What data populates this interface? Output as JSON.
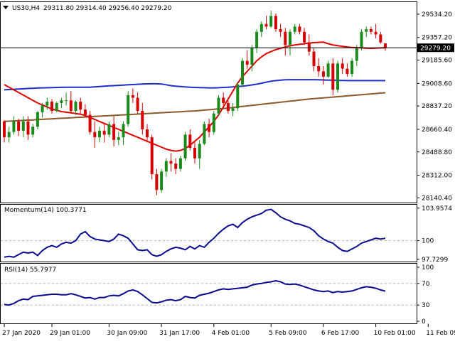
{
  "header": {
    "symbol": "US30,H4",
    "ohlc": "29311.80 29314.40 29256.40 29279.20"
  },
  "colors": {
    "bull": "#1a8a1a",
    "bear": "#d40000",
    "ma_fast": "#e00000",
    "ma_mid": "#1f2ec8",
    "ma_slow": "#8b5a2b",
    "indicator": "#0a0a90",
    "price_marker_bg": "#000000",
    "grid": "#b4b4b4"
  },
  "chart_data": [
    {
      "type": "candlestick",
      "title": "US30,H4",
      "ohlc_text": "29311.80 29314.40 29256.40 29279.20",
      "ylim": [
        28110,
        29620
      ],
      "y_ticks": [
        "29534.20",
        "29357.20",
        "29185.60",
        "29008.60",
        "28837.20",
        "28660.40",
        "28488.80",
        "28312.00",
        "28140.40"
      ],
      "current_price_label": "29279.20",
      "current_price": 29279.2,
      "x_tick_labels": [
        {
          "index": 0,
          "label": "27 Jan 2020"
        },
        {
          "index": 10,
          "label": "29 Jan 01:00"
        },
        {
          "index": 22,
          "label": "30 Jan 09:00"
        },
        {
          "index": 33,
          "label": "31 Jan 17:00"
        },
        {
          "index": 44,
          "label": "4 Feb 01:00"
        },
        {
          "index": 56,
          "label": "5 Feb 09:00"
        },
        {
          "index": 67,
          "label": "6 Feb 17:00"
        },
        {
          "index": 78,
          "label": "10 Feb 01:00"
        },
        {
          "index": 89,
          "label": "11 Feb 09:00"
        }
      ],
      "candles": [
        [
          28720,
          28730,
          28560,
          28600
        ],
        [
          28600,
          28680,
          28560,
          28640
        ],
        [
          28640,
          28760,
          28620,
          28720
        ],
        [
          28720,
          28740,
          28610,
          28650
        ],
        [
          28650,
          28760,
          28600,
          28720
        ],
        [
          28720,
          28760,
          28580,
          28620
        ],
        [
          28620,
          28700,
          28600,
          28680
        ],
        [
          28680,
          28800,
          28660,
          28790
        ],
        [
          28790,
          28860,
          28750,
          28840
        ],
        [
          28840,
          28900,
          28810,
          28870
        ],
        [
          28870,
          28890,
          28780,
          28800
        ],
        [
          28800,
          28870,
          28790,
          28860
        ],
        [
          28860,
          28900,
          28820,
          28880
        ],
        [
          28880,
          28940,
          28840,
          28880
        ],
        [
          28880,
          28950,
          28780,
          28800
        ],
        [
          28800,
          28880,
          28770,
          28870
        ],
        [
          28870,
          28900,
          28780,
          28810
        ],
        [
          28810,
          28850,
          28750,
          28770
        ],
        [
          28770,
          28800,
          28620,
          28640
        ],
        [
          28640,
          28720,
          28520,
          28600
        ],
        [
          28600,
          28680,
          28560,
          28650
        ],
        [
          28650,
          28700,
          28560,
          28620
        ],
        [
          28620,
          28720,
          28600,
          28700
        ],
        [
          28700,
          28760,
          28530,
          28580
        ],
        [
          28580,
          28640,
          28540,
          28600
        ],
        [
          28600,
          28720,
          28540,
          28700
        ],
        [
          28700,
          28950,
          28680,
          28920
        ],
        [
          28920,
          28970,
          28860,
          28900
        ],
        [
          28900,
          28940,
          28780,
          28800
        ],
        [
          28800,
          28860,
          28620,
          28660
        ],
        [
          28660,
          28700,
          28560,
          28600
        ],
        [
          28600,
          28620,
          28280,
          28320
        ],
        [
          28320,
          28360,
          28160,
          28200
        ],
        [
          28200,
          28360,
          28180,
          28340
        ],
        [
          28340,
          28440,
          28300,
          28420
        ],
        [
          28420,
          28480,
          28340,
          28400
        ],
        [
          28400,
          28440,
          28320,
          28360
        ],
        [
          28360,
          28460,
          28340,
          28440
        ],
        [
          28440,
          28640,
          28420,
          28620
        ],
        [
          28620,
          28660,
          28500,
          28520
        ],
        [
          28520,
          28560,
          28400,
          28440
        ],
        [
          28440,
          28580,
          28360,
          28550
        ],
        [
          28550,
          28720,
          28540,
          28700
        ],
        [
          28700,
          28740,
          28600,
          28640
        ],
        [
          28640,
          28800,
          28620,
          28780
        ],
        [
          28780,
          28920,
          28760,
          28900
        ],
        [
          28900,
          28940,
          28840,
          28860
        ],
        [
          28860,
          28900,
          28780,
          28800
        ],
        [
          28800,
          28860,
          28760,
          28820
        ],
        [
          28820,
          29020,
          28800,
          29000
        ],
        [
          29000,
          29200,
          28980,
          29180
        ],
        [
          29180,
          29260,
          29120,
          29150
        ],
        [
          29150,
          29300,
          29100,
          29280
        ],
        [
          29280,
          29420,
          29240,
          29400
        ],
        [
          29400,
          29480,
          29360,
          29460
        ],
        [
          29460,
          29520,
          29420,
          29440
        ],
        [
          29440,
          29560,
          29430,
          29520
        ],
        [
          29520,
          29540,
          29400,
          29420
        ],
        [
          29420,
          29460,
          29360,
          29400
        ],
        [
          29400,
          29430,
          29220,
          29300
        ],
        [
          29300,
          29420,
          29220,
          29400
        ],
        [
          29400,
          29460,
          29380,
          29440
        ],
        [
          29440,
          29460,
          29380,
          29400
        ],
        [
          29400,
          29430,
          29300,
          29320
        ],
        [
          29320,
          29380,
          29220,
          29250
        ],
        [
          29250,
          29280,
          29100,
          29140
        ],
        [
          29140,
          29200,
          29060,
          29100
        ],
        [
          29100,
          29140,
          29000,
          29060
        ],
        [
          29060,
          29180,
          29050,
          29160
        ],
        [
          29160,
          29200,
          28920,
          28960
        ],
        [
          28960,
          29180,
          28940,
          29160
        ],
        [
          29160,
          29200,
          29080,
          29120
        ],
        [
          29120,
          29160,
          29060,
          29080
        ],
        [
          29080,
          29200,
          29060,
          29180
        ],
        [
          29180,
          29300,
          29140,
          29280
        ],
        [
          29280,
          29420,
          29260,
          29400
        ],
        [
          29400,
          29440,
          29360,
          29420
        ],
        [
          29420,
          29440,
          29380,
          29400
        ],
        [
          29400,
          29460,
          29350,
          29380
        ],
        [
          29380,
          29400,
          29310,
          29320
        ],
        [
          29311.8,
          29314.4,
          29256.4,
          29279.2
        ]
      ],
      "ma_fast": [
        29000,
        28980,
        28960,
        28940,
        28920,
        28900,
        28880,
        28860,
        28845,
        28830,
        28815,
        28805,
        28795,
        28790,
        28785,
        28780,
        28775,
        28765,
        28750,
        28735,
        28720,
        28705,
        28690,
        28675,
        28660,
        28645,
        28630,
        28615,
        28600,
        28585,
        28570,
        28555,
        28540,
        28525,
        28510,
        28500,
        28495,
        28500,
        28515,
        28540,
        28570,
        28600,
        28640,
        28680,
        28720,
        28770,
        28830,
        28890,
        28950,
        29010,
        29060,
        29100,
        29140,
        29180,
        29210,
        29235,
        29250,
        29265,
        29275,
        29285,
        29295,
        29300,
        29305,
        29310,
        29315,
        29318,
        29320,
        29322,
        29310,
        29300,
        29295,
        29290,
        29285,
        29282,
        29280,
        29278,
        29276,
        29275,
        29276,
        29278,
        29279
      ],
      "ma_mid": [
        28960,
        28962,
        28964,
        28966,
        28968,
        28970,
        28972,
        28974,
        28975,
        28976,
        28977,
        28978,
        28979,
        28980,
        28980,
        28980,
        28980,
        28980,
        28980,
        28982,
        28985,
        28988,
        28990,
        28992,
        28994,
        28996,
        28998,
        29000,
        29002,
        29004,
        29005,
        29006,
        29006,
        29004,
        28998,
        28992,
        28988,
        28985,
        28982,
        28980,
        28978,
        28977,
        28976,
        28975,
        28975,
        28976,
        28978,
        28980,
        28982,
        28985,
        28988,
        28992,
        28997,
        29003,
        29010,
        29018,
        29025,
        29030,
        29034,
        29036,
        29037,
        29037,
        29037,
        29037,
        29037,
        29037,
        29036,
        29035,
        29034,
        29033,
        29032,
        29031,
        29030,
        29030,
        29030,
        29030,
        29030,
        29030,
        29030,
        29030,
        29030
      ],
      "ma_slow": [
        28720,
        28722,
        28724,
        28726,
        28728,
        28730,
        28732,
        28734,
        28736,
        28738,
        28740,
        28742,
        28744,
        28746,
        28748,
        28750,
        28752,
        28754,
        28756,
        28758,
        28760,
        28762,
        28764,
        28766,
        28768,
        28770,
        28772,
        28774,
        28776,
        28778,
        28780,
        28782,
        28784,
        28786,
        28788,
        28790,
        28792,
        28794,
        28796,
        28798,
        28800,
        28803,
        28806,
        28809,
        28812,
        28815,
        28818,
        28822,
        28826,
        28830,
        28834,
        28838,
        28842,
        28846,
        28850,
        28854,
        28858,
        28862,
        28866,
        28870,
        28874,
        28878,
        28882,
        28886,
        28890,
        28893,
        28896,
        28899,
        28902,
        28905,
        28908,
        28911,
        28914,
        28917,
        28920,
        28923,
        28926,
        28929,
        28932,
        28935,
        28938
      ]
    },
    {
      "type": "line",
      "title": "Momentum(14) 100.3771",
      "ylim": [
        97.55,
        104.2
      ],
      "y_ticks": [
        "103.9574",
        "100",
        "97.7299"
      ],
      "level": 100,
      "values": [
        98.0,
        98.1,
        98.0,
        98.3,
        98.6,
        98.5,
        98.6,
        98.2,
        98.8,
        99.2,
        99.4,
        99.2,
        99.6,
        99.8,
        99.7,
        100.0,
        100.8,
        101.1,
        100.5,
        100.2,
        100.1,
        100.0,
        99.9,
        100.2,
        100.8,
        100.6,
        100.3,
        99.6,
        98.9,
        98.8,
        98.9,
        98.3,
        98.1,
        98.3,
        98.7,
        99.0,
        99.2,
        99.1,
        98.9,
        99.3,
        99.0,
        99.4,
        99.2,
        99.8,
        100.3,
        100.9,
        101.4,
        101.8,
        102.0,
        101.6,
        102.2,
        102.6,
        102.9,
        103.1,
        103.3,
        103.7,
        103.8,
        103.4,
        102.9,
        102.6,
        102.4,
        102.1,
        102.0,
        101.8,
        101.6,
        101.2,
        100.6,
        100.2,
        99.9,
        99.7,
        99.2,
        98.8,
        98.7,
        99.0,
        99.3,
        99.7,
        99.9,
        100.1,
        100.3,
        100.2,
        100.3
      ]
    },
    {
      "type": "line",
      "title": "RSI(14) 55.7977",
      "ylim": [
        0,
        100
      ],
      "y_ticks": [
        "100",
        "70",
        "30",
        "0"
      ],
      "levels": [
        70,
        30
      ],
      "values": [
        31,
        30,
        33,
        38,
        41,
        40,
        46,
        47,
        48,
        49,
        50,
        50,
        49,
        49,
        51,
        49,
        46,
        43,
        44,
        41,
        44,
        44,
        47,
        48,
        47,
        51,
        56,
        58,
        55,
        49,
        42,
        35,
        34,
        36,
        39,
        40,
        38,
        40,
        46,
        44,
        43,
        48,
        50,
        52,
        55,
        58,
        60,
        59,
        60,
        61,
        62,
        63,
        67,
        69,
        70,
        72,
        73,
        75,
        73,
        69,
        68,
        69,
        67,
        64,
        61,
        58,
        56,
        55,
        56,
        53,
        55,
        54,
        55,
        56,
        59,
        62,
        64,
        63,
        61,
        58,
        55.8
      ]
    }
  ]
}
